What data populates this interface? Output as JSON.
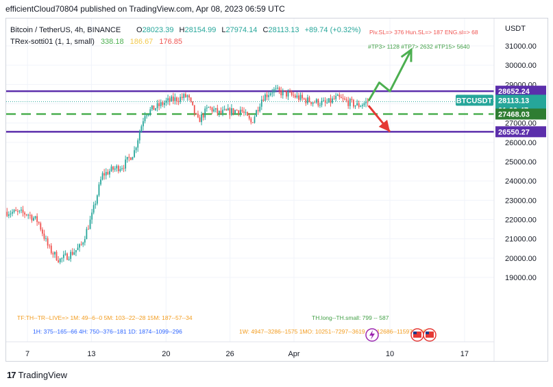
{
  "header": {
    "published_text": "efficientCloud70804 published on TradingView.com, Apr 08, 2023 06:59 UTC"
  },
  "footer": {
    "brand_mark": "17",
    "brand": "TradingView"
  },
  "legend": {
    "symbol": "Bitcoin / TetherUS, 4h, BINANCE",
    "ohlc": [
      {
        "k": "O",
        "v": "28023.39"
      },
      {
        "k": "H",
        "v": "28154.99"
      },
      {
        "k": "L",
        "v": "27974.14"
      },
      {
        "k": "C",
        "v": "28113.13"
      }
    ],
    "change": "+89.74 (+0.32%)",
    "indicator_name": "TRex-sotti01 (1, 1, small)",
    "indicator_values": [
      {
        "v": "338.18",
        "color": "#4caf50"
      },
      {
        "v": "186.67",
        "color": "#f2c94c"
      },
      {
        "v": "176.85",
        "color": "#ef5350"
      }
    ]
  },
  "overlay_text": {
    "sl_row": "Piv.SL=> 376  Hun.SL=> 187  ENG.sl=> 68",
    "tp_row": "#TP3> 1128  #TP7> 2632  #TP15> 5640",
    "tf_row": "TF:TH--TR--LIVE=>  1M: 49--6--0   5M: 103--22--28   15M: 187--57--34",
    "thlong_row": "TH.long--TH.small: 799 -- 587",
    "row_blue": "1H: 375--165--66    4H: 750--376--181    1D: 1874--1099--296",
    "row_orange": "1W: 4947--3286--1575    1MO: 10251--7297--3619    1Y: 12686--11597--12686"
  },
  "price_axis": {
    "currency": "USDT",
    "ticks": [
      "31000.00",
      "30000.00",
      "29000.00",
      "28000.00",
      "27000.00",
      "26000.00",
      "25000.00",
      "24000.00",
      "23000.00",
      "22000.00",
      "21000.00",
      "20000.00",
      "19000.00"
    ],
    "labels": [
      {
        "text": "28652.24",
        "bg": "#5b2eab"
      },
      {
        "text": "BTCUSDT",
        "bg": "#26a69a"
      },
      {
        "text": "28113.13",
        "bg": "#26a69a"
      },
      {
        "text": "01:00:47",
        "bg": "#26a69a"
      },
      {
        "text": "27468.03",
        "bg": "#2e7d32"
      },
      {
        "text": "26550.27",
        "bg": "#5b2eab"
      }
    ]
  },
  "time_axis": {
    "labels": [
      "7",
      "13",
      "20",
      "26",
      "Apr",
      "10",
      "17"
    ]
  },
  "colors": {
    "up": "#26a69a",
    "down": "#ef5350",
    "resistance": "#5b2eab",
    "support_dashed": "#4caf50",
    "arrow_up": "#4caf50",
    "arrow_down": "#e53935"
  },
  "chart_data": {
    "type": "candlestick",
    "title": "Bitcoin / TetherUS, 4h, BINANCE",
    "x": {
      "type": "date",
      "range": [
        "2023-03-05",
        "2023-04-19"
      ],
      "ticks": [
        "2023-03-07",
        "2023-03-13",
        "2023-03-20",
        "2023-03-26",
        "2023-04-01",
        "2023-04-10",
        "2023-04-17"
      ]
    },
    "ylim": [
      18500,
      31900
    ],
    "price_scale": "linear",
    "horizontal_lines": [
      {
        "name": "resistance",
        "value": 28652.24,
        "style": "solid"
      },
      {
        "name": "support",
        "value": 26550.27,
        "style": "solid"
      },
      {
        "name": "mid",
        "value": 27468.03,
        "style": "dashed"
      }
    ],
    "last_price": 28113.13,
    "price_path_approx": [
      {
        "date": "2023-03-05",
        "price": 22400
      },
      {
        "date": "2023-03-07",
        "price": 22300
      },
      {
        "date": "2023-03-08",
        "price": 21900
      },
      {
        "date": "2023-03-09",
        "price": 20500
      },
      {
        "date": "2023-03-10",
        "price": 19900
      },
      {
        "date": "2023-03-11",
        "price": 20200
      },
      {
        "date": "2023-03-12",
        "price": 20600
      },
      {
        "date": "2023-03-13",
        "price": 22100
      },
      {
        "date": "2023-03-14",
        "price": 24300
      },
      {
        "date": "2023-03-15",
        "price": 24600
      },
      {
        "date": "2023-03-16",
        "price": 24800
      },
      {
        "date": "2023-03-17",
        "price": 25500
      },
      {
        "date": "2023-03-18",
        "price": 27500
      },
      {
        "date": "2023-03-19",
        "price": 27800
      },
      {
        "date": "2023-03-20",
        "price": 28100
      },
      {
        "date": "2023-03-22",
        "price": 28400
      },
      {
        "date": "2023-03-23",
        "price": 27100
      },
      {
        "date": "2023-03-24",
        "price": 27800
      },
      {
        "date": "2023-03-25",
        "price": 27500
      },
      {
        "date": "2023-03-27",
        "price": 27700
      },
      {
        "date": "2023-03-28",
        "price": 27000
      },
      {
        "date": "2023-03-29",
        "price": 28300
      },
      {
        "date": "2023-03-30",
        "price": 28700
      },
      {
        "date": "2023-04-01",
        "price": 28400
      },
      {
        "date": "2023-04-02",
        "price": 28200
      },
      {
        "date": "2023-04-04",
        "price": 28000
      },
      {
        "date": "2023-04-05",
        "price": 28300
      },
      {
        "date": "2023-04-06",
        "price": 28100
      },
      {
        "date": "2023-04-07",
        "price": 27900
      },
      {
        "date": "2023-04-08",
        "price": 28113
      }
    ],
    "projections": [
      {
        "name": "bullish",
        "color": "green",
        "path": [
          {
            "date": "2023-04-08",
            "price": 28150
          },
          {
            "date": "2023-04-09",
            "price": 29100
          },
          {
            "date": "2023-04-10",
            "price": 28650
          },
          {
            "date": "2023-04-12",
            "price": 30800
          }
        ]
      },
      {
        "name": "bearish",
        "color": "red",
        "path": [
          {
            "date": "2023-04-08",
            "price": 27900
          },
          {
            "date": "2023-04-10",
            "price": 26550
          }
        ]
      }
    ]
  }
}
